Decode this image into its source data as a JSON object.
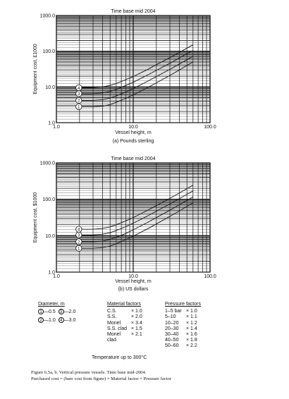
{
  "chart_data": [
    {
      "type": "line",
      "title": "Time base mid 2004",
      "ylabel": "Equipment cost, £1000",
      "xlabel": "Vessel height, m",
      "subcaption": "(a) Pounds sterling",
      "xscale": "log",
      "yscale": "log",
      "xlim": [
        1,
        100
      ],
      "ylim": [
        1,
        1000
      ],
      "xticks": [
        "1.0",
        "10.0",
        "100.0"
      ],
      "yticks": [
        "1.0",
        "10.0",
        "100.0",
        "1000.0"
      ],
      "grid": true,
      "series": [
        {
          "name": "1",
          "x": [
            2,
            3,
            4,
            5,
            6,
            8,
            10,
            15,
            20,
            30,
            40,
            50,
            60
          ],
          "y": [
            2.8,
            2.8,
            2.9,
            3.2,
            3.7,
            4.8,
            6,
            9.3,
            13,
            21,
            30,
            40,
            50
          ]
        },
        {
          "name": "2",
          "x": [
            2,
            3,
            4,
            5,
            6,
            8,
            10,
            15,
            20,
            30,
            40,
            50,
            60
          ],
          "y": [
            4.2,
            4.2,
            4.4,
            4.9,
            5.6,
            7.2,
            9,
            14,
            19.5,
            31,
            44,
            58,
            72
          ]
        },
        {
          "name": "3",
          "x": [
            2,
            3,
            4,
            5,
            6,
            8,
            10,
            15,
            20,
            30,
            40,
            50,
            60
          ],
          "y": [
            6.5,
            6.5,
            6.8,
            7.5,
            8.5,
            11,
            13.5,
            21,
            29,
            46,
            65,
            85,
            105
          ]
        },
        {
          "name": "4",
          "x": [
            2,
            3,
            4,
            5,
            6,
            8,
            10,
            15,
            20,
            30,
            40,
            50,
            60
          ],
          "y": [
            9.5,
            9.5,
            10,
            11,
            12.5,
            16,
            19.5,
            30,
            42,
            66,
            93,
            122,
            150
          ]
        }
      ]
    },
    {
      "type": "line",
      "title": "Time base mid 2004",
      "ylabel": "Equipment cost, $1000",
      "xlabel": "Vessel height, m",
      "subcaption": "(b) US dollars",
      "xscale": "log",
      "yscale": "log",
      "xlim": [
        1,
        100
      ],
      "ylim": [
        1,
        1000
      ],
      "xticks": [
        "1.0",
        "10.0",
        "100.0"
      ],
      "yticks": [
        "1.0",
        "10.0",
        "100.0",
        "1000.0"
      ],
      "grid": true,
      "series": [
        {
          "name": "1",
          "x": [
            2,
            3,
            4,
            5,
            6,
            8,
            10,
            15,
            20,
            30,
            40,
            50,
            60
          ],
          "y": [
            4.5,
            4.5,
            4.7,
            5.2,
            6,
            7.8,
            9.7,
            15,
            21,
            34,
            48,
            64,
            80
          ]
        },
        {
          "name": "2",
          "x": [
            2,
            3,
            4,
            5,
            6,
            8,
            10,
            15,
            20,
            30,
            40,
            50,
            60
          ],
          "y": [
            6.8,
            6.8,
            7.1,
            7.9,
            9,
            11.5,
            14.5,
            22.5,
            31.5,
            50,
            71,
            93,
            116
          ]
        },
        {
          "name": "3",
          "x": [
            2,
            3,
            4,
            5,
            6,
            8,
            10,
            15,
            20,
            30,
            40,
            50,
            60
          ],
          "y": [
            10.5,
            10.5,
            11,
            12,
            13.8,
            17.7,
            22,
            34,
            47,
            74,
            105,
            137,
            170
          ]
        },
        {
          "name": "4",
          "x": [
            2,
            3,
            4,
            5,
            6,
            8,
            10,
            15,
            20,
            30,
            40,
            50,
            60
          ],
          "y": [
            15,
            15,
            15.8,
            17.5,
            20,
            25.5,
            31.5,
            48.5,
            67,
            106,
            150,
            196,
            245
          ]
        }
      ]
    }
  ],
  "diameter": {
    "header": "Diameter, m",
    "rows": [
      [
        {
          "n": "1",
          "v": "—0.5"
        },
        {
          "n": "3",
          "v": "—2.0"
        }
      ],
      [
        {
          "n": "2",
          "v": "—1.0"
        },
        {
          "n": "4",
          "v": "—3.0"
        }
      ]
    ]
  },
  "material": {
    "header": "Material factors",
    "rows": [
      {
        "m": "C.S.",
        "f": "× 1.0"
      },
      {
        "m": "S.S.",
        "f": "× 2.0"
      },
      {
        "m": "Monel",
        "f": "× 3.4"
      },
      {
        "m": "S.S. clad",
        "f": "× 1.5"
      },
      {
        "m": "Monel",
        "f": "× 2.1"
      },
      {
        "m": "clad",
        "f": ""
      }
    ]
  },
  "pressure": {
    "header": "Pressure factors",
    "rows": [
      {
        "r": "1–5 bar",
        "f": "× 1.0"
      },
      {
        "r": "5–10",
        "f": "× 1.1"
      },
      {
        "r": "10–20",
        "f": "× 1.2"
      },
      {
        "r": "20–30",
        "f": "× 1.4"
      },
      {
        "r": "30–40",
        "f": "× 1.6"
      },
      {
        "r": "40–50",
        "f": "× 1.8"
      },
      {
        "r": "50–60",
        "f": "× 2.2"
      }
    ]
  },
  "temperature_note": "Temperature up to 300°C",
  "caption": {
    "line1": "Figure 6.5a, b. Vertical pressure vessels. Time base mid-2004.",
    "line2": "Purchased cost = (bare cost from figure) × Material factor × Pressure factor"
  }
}
